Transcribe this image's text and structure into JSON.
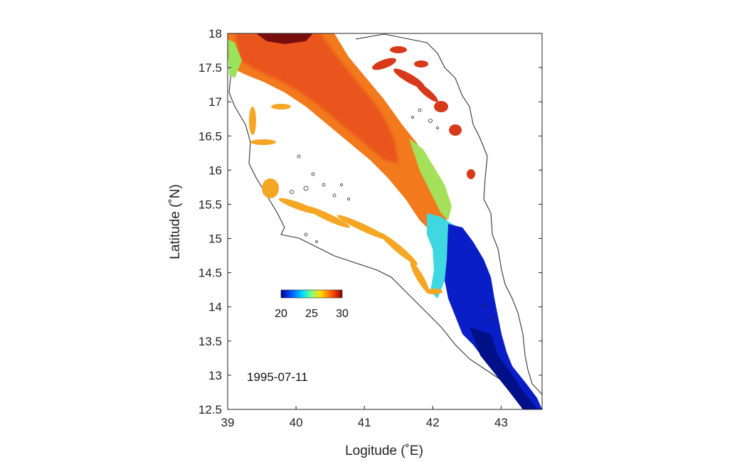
{
  "map": {
    "xlabel": "Logitude (˚E)",
    "ylabel": "Latitude (˚N)",
    "date_label": "1995-07-11",
    "x_ticks": [
      "39",
      "40",
      "41",
      "42",
      "43"
    ],
    "y_ticks": [
      "18",
      "17.5",
      "17",
      "16.5",
      "16",
      "15.5",
      "15",
      "14.5",
      "14",
      "13.5",
      "13",
      "12.5"
    ],
    "lon_range": [
      39,
      43.6
    ],
    "lat_range": [
      12.5,
      18
    ],
    "colorbar": {
      "range": [
        20,
        30
      ],
      "ticks": [
        "20",
        "25",
        "30"
      ],
      "colors": [
        "#00008f",
        "#0050ff",
        "#00dfff",
        "#7fff7f",
        "#ffdf00",
        "#ff5000",
        "#8f0000"
      ]
    }
  }
}
